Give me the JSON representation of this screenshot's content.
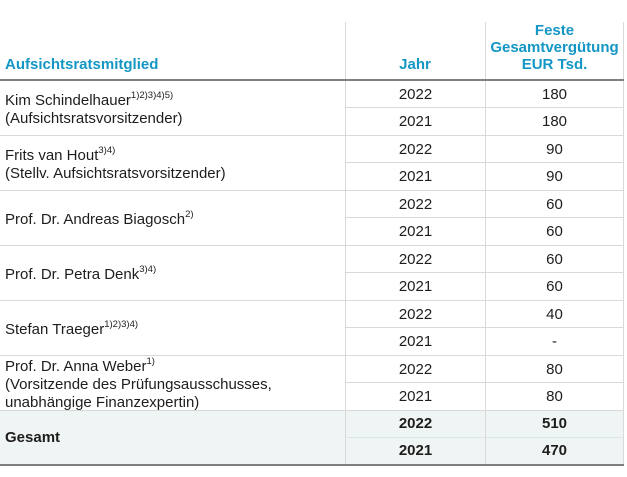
{
  "table": {
    "accent_color": "#1497c4",
    "light_line_color": "#d9d9d9",
    "dark_line_color": "#7f7f7f",
    "total_row_bg": "#eff4f5",
    "header": {
      "member_label": "Aufsichtsratsmitglied",
      "year_label": "Jahr",
      "compensation_lines": [
        "Feste",
        "Gesamtvergütung",
        "EUR Tsd."
      ]
    },
    "members": [
      {
        "name": "Kim Schindelhauer",
        "superscript": "1)2)3)4)5)",
        "role_lines": [
          "(Aufsichtsratsvorsitzender)"
        ],
        "rows": [
          {
            "year": "2022",
            "value": "180"
          },
          {
            "year": "2021",
            "value": "180"
          }
        ]
      },
      {
        "name": "Frits van Hout",
        "superscript": "3)4)",
        "role_lines": [
          "(Stellv. Aufsichtsratsvorsitzender)"
        ],
        "rows": [
          {
            "year": "2022",
            "value": "90"
          },
          {
            "year": "2021",
            "value": "90"
          }
        ]
      },
      {
        "name": "Prof. Dr. Andreas Biagosch",
        "superscript": "2)",
        "role_lines": [],
        "rows": [
          {
            "year": "2022",
            "value": "60"
          },
          {
            "year": "2021",
            "value": "60"
          }
        ]
      },
      {
        "name": "Prof. Dr. Petra Denk",
        "superscript": "3)4)",
        "role_lines": [],
        "rows": [
          {
            "year": "2022",
            "value": "60"
          },
          {
            "year": "2021",
            "value": "60"
          }
        ]
      },
      {
        "name": "Stefan Traeger",
        "superscript": "1)2)3)4)",
        "role_lines": [],
        "rows": [
          {
            "year": "2022",
            "value": "40"
          },
          {
            "year": "2021",
            "value": "-"
          }
        ]
      },
      {
        "name": "Prof. Dr. Anna Weber",
        "superscript": "1)",
        "role_lines": [
          "(Vorsitzende des Prüfungsausschusses,",
          "unabhängige Finanzexpertin)"
        ],
        "rows": [
          {
            "year": "2022",
            "value": "80"
          },
          {
            "year": "2021",
            "value": "80"
          }
        ]
      }
    ],
    "total": {
      "label": "Gesamt",
      "rows": [
        {
          "year": "2022",
          "value": "510"
        },
        {
          "year": "2021",
          "value": "470"
        }
      ]
    }
  }
}
